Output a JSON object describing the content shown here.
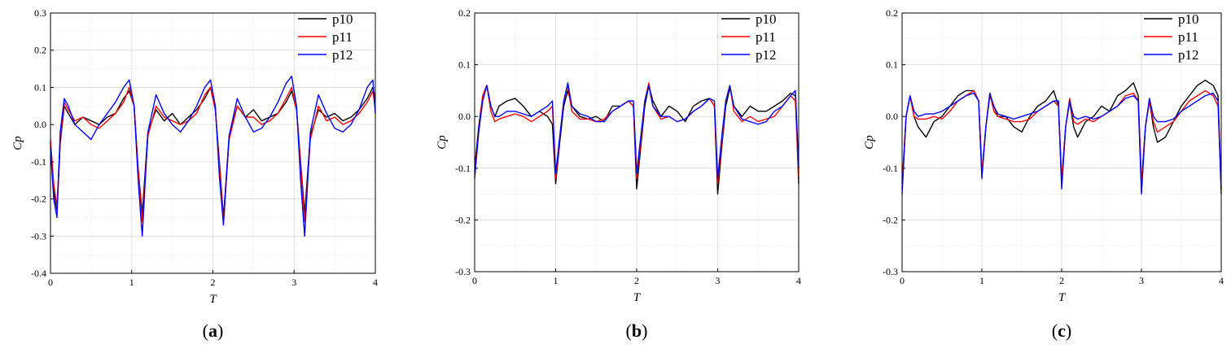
{
  "figure": {
    "panels": [
      {
        "label_open": "(",
        "label_letter": "a",
        "label_close": ")",
        "xticks": [
          "0",
          "1",
          "2",
          "3",
          "4"
        ],
        "yticks": [
          "-0.4",
          "-0.3",
          "-0.2",
          "-0.1",
          "0.0",
          "0.1",
          "0.2",
          "0.3"
        ]
      },
      {
        "label_open": "(",
        "label_letter": "b",
        "label_close": ")",
        "xticks": [
          "0",
          "1",
          "2",
          "3",
          "4"
        ],
        "yticks": [
          "-0.3",
          "-0.2",
          "-0.1",
          "0.0",
          "0.1",
          "0.2"
        ]
      },
      {
        "label_open": "(",
        "label_letter": "c",
        "label_close": ")",
        "xticks": [
          "0",
          "1",
          "2",
          "3",
          "4"
        ],
        "yticks": [
          "-0.3",
          "-0.2",
          "-0.1",
          "0.0",
          "0.1",
          "0.2"
        ]
      }
    ]
  },
  "colors": {
    "p10": "#000000",
    "p11": "#ff0000",
    "p12": "#0000ff",
    "grid": "#d8d8d8"
  },
  "chart_data": [
    {
      "type": "line",
      "xlabel": "T",
      "ylabel": "Cp",
      "xlim": [
        0,
        4
      ],
      "ylim": [
        -0.4,
        0.3
      ],
      "grid": true,
      "legend_position": "top-right",
      "x": [
        0,
        0.04,
        0.08,
        0.12,
        0.17,
        0.22,
        0.3,
        0.4,
        0.5,
        0.6,
        0.7,
        0.8,
        0.9,
        0.97,
        1.03,
        1.08,
        1.13,
        1.2,
        1.3,
        1.4,
        1.5,
        1.6,
        1.7,
        1.8,
        1.9,
        1.97,
        2.03,
        2.08,
        2.13,
        2.2,
        2.3,
        2.4,
        2.5,
        2.6,
        2.7,
        2.8,
        2.9,
        2.97,
        3.03,
        3.08,
        3.13,
        3.2,
        3.3,
        3.4,
        3.5,
        3.6,
        3.7,
        3.8,
        3.9,
        3.97,
        4.0
      ],
      "series": [
        {
          "name": "p10",
          "values": [
            -0.05,
            -0.18,
            -0.23,
            -0.05,
            0.05,
            0.03,
            0.0,
            0.02,
            0.01,
            0.0,
            0.02,
            0.03,
            0.07,
            0.09,
            0.05,
            -0.12,
            -0.24,
            -0.02,
            0.04,
            0.01,
            0.03,
            0.0,
            0.02,
            0.04,
            0.07,
            0.1,
            0.04,
            -0.1,
            -0.25,
            -0.03,
            0.05,
            0.02,
            0.04,
            0.01,
            0.02,
            0.03,
            0.06,
            0.09,
            0.04,
            -0.1,
            -0.24,
            -0.03,
            0.04,
            0.02,
            0.03,
            0.01,
            0.02,
            0.04,
            0.07,
            0.1,
            0.07
          ]
        },
        {
          "name": "p11",
          "values": [
            -0.04,
            -0.16,
            -0.22,
            -0.04,
            0.06,
            0.04,
            0.01,
            0.02,
            0.0,
            -0.01,
            0.01,
            0.03,
            0.06,
            0.1,
            0.05,
            -0.12,
            -0.26,
            -0.03,
            0.05,
            0.02,
            0.01,
            0.0,
            0.01,
            0.03,
            0.08,
            0.1,
            0.04,
            -0.11,
            -0.26,
            -0.04,
            0.05,
            0.02,
            0.02,
            0.0,
            0.01,
            0.03,
            0.07,
            0.1,
            0.04,
            -0.11,
            -0.26,
            -0.04,
            0.05,
            0.01,
            0.02,
            0.0,
            0.01,
            0.03,
            0.06,
            0.09,
            0.04
          ]
        },
        {
          "name": "p12",
          "values": [
            -0.06,
            -0.2,
            -0.25,
            -0.02,
            0.07,
            0.05,
            0.0,
            -0.02,
            -0.04,
            0.0,
            0.03,
            0.06,
            0.1,
            0.12,
            0.05,
            -0.15,
            -0.3,
            -0.02,
            0.08,
            0.03,
            0.0,
            -0.02,
            0.01,
            0.05,
            0.1,
            0.12,
            0.05,
            -0.14,
            -0.27,
            -0.03,
            0.07,
            0.02,
            -0.02,
            -0.01,
            0.02,
            0.06,
            0.11,
            0.13,
            0.05,
            -0.15,
            -0.3,
            -0.02,
            0.08,
            0.03,
            -0.01,
            -0.02,
            0.0,
            0.04,
            0.1,
            0.12,
            0.03
          ]
        }
      ]
    },
    {
      "type": "line",
      "xlabel": "T",
      "ylabel": "Cp",
      "xlim": [
        0,
        4
      ],
      "ylim": [
        -0.3,
        0.2
      ],
      "grid": true,
      "legend_position": "top-right",
      "x": [
        0,
        0.05,
        0.1,
        0.15,
        0.2,
        0.25,
        0.3,
        0.4,
        0.5,
        0.6,
        0.7,
        0.8,
        0.9,
        0.96,
        1.0,
        1.05,
        1.1,
        1.15,
        1.2,
        1.3,
        1.4,
        1.5,
        1.6,
        1.7,
        1.8,
        1.9,
        1.96,
        2.0,
        2.05,
        2.1,
        2.15,
        2.2,
        2.3,
        2.4,
        2.5,
        2.6,
        2.7,
        2.8,
        2.9,
        2.96,
        3.0,
        3.05,
        3.1,
        3.15,
        3.2,
        3.3,
        3.4,
        3.5,
        3.6,
        3.7,
        3.8,
        3.9,
        3.96,
        4.0
      ],
      "series": [
        {
          "name": "p10",
          "values": [
            -0.1,
            -0.02,
            0.04,
            0.06,
            0.02,
            0.0,
            0.02,
            0.03,
            0.035,
            0.02,
            0.0,
            0.01,
            0.0,
            -0.015,
            -0.13,
            -0.05,
            0.02,
            0.05,
            0.02,
            0.0,
            -0.005,
            0.0,
            -0.01,
            0.02,
            0.02,
            0.03,
            0.02,
            -0.14,
            -0.06,
            0.02,
            0.06,
            0.03,
            0.0,
            0.02,
            0.01,
            -0.01,
            0.02,
            0.03,
            0.035,
            0.02,
            -0.15,
            -0.06,
            0.02,
            0.055,
            0.02,
            0.0,
            0.02,
            0.01,
            0.01,
            0.02,
            0.03,
            0.045,
            0.04,
            -0.13
          ]
        },
        {
          "name": "p11",
          "values": [
            -0.11,
            -0.03,
            0.04,
            0.06,
            0.01,
            -0.01,
            -0.005,
            0.0,
            0.005,
            0.0,
            -0.01,
            0.0,
            0.01,
            0.02,
            -0.12,
            -0.04,
            0.03,
            0.06,
            0.01,
            -0.005,
            -0.005,
            -0.01,
            -0.005,
            0.01,
            0.02,
            0.03,
            0.02,
            -0.12,
            -0.05,
            0.03,
            0.065,
            0.02,
            -0.005,
            0.0,
            -0.01,
            -0.005,
            0.01,
            0.02,
            0.035,
            0.02,
            -0.13,
            -0.05,
            0.03,
            0.06,
            0.01,
            -0.01,
            0.0,
            -0.01,
            -0.005,
            0.0,
            0.02,
            0.04,
            0.03,
            -0.12
          ]
        },
        {
          "name": "p12",
          "values": [
            -0.12,
            -0.03,
            0.03,
            0.06,
            0.02,
            0.0,
            0.0,
            0.01,
            0.01,
            0.005,
            0.0,
            0.01,
            0.02,
            0.03,
            -0.11,
            -0.04,
            0.03,
            0.065,
            0.02,
            0.005,
            0.0,
            -0.01,
            -0.01,
            0.01,
            0.02,
            0.03,
            0.03,
            -0.11,
            -0.04,
            0.03,
            0.06,
            0.02,
            0.0,
            0.0,
            -0.01,
            -0.005,
            0.01,
            0.02,
            0.035,
            0.03,
            -0.12,
            -0.04,
            0.03,
            0.06,
            0.02,
            -0.005,
            -0.01,
            -0.015,
            -0.01,
            0.01,
            0.02,
            0.04,
            0.05,
            -0.1
          ]
        }
      ]
    },
    {
      "type": "line",
      "xlabel": "T",
      "ylabel": "Cp",
      "xlim": [
        0,
        4
      ],
      "ylim": [
        -0.3,
        0.2
      ],
      "grid": true,
      "legend_position": "top-right",
      "x": [
        0,
        0.05,
        0.1,
        0.15,
        0.2,
        0.3,
        0.4,
        0.5,
        0.6,
        0.7,
        0.8,
        0.9,
        0.96,
        1.0,
        1.05,
        1.1,
        1.15,
        1.2,
        1.3,
        1.4,
        1.5,
        1.6,
        1.7,
        1.8,
        1.9,
        1.96,
        2.0,
        2.05,
        2.1,
        2.15,
        2.2,
        2.3,
        2.4,
        2.5,
        2.6,
        2.7,
        2.8,
        2.9,
        2.96,
        3.0,
        3.05,
        3.1,
        3.15,
        3.2,
        3.3,
        3.4,
        3.5,
        3.6,
        3.7,
        3.8,
        3.9,
        3.96,
        4.0
      ],
      "series": [
        {
          "name": "p10",
          "values": [
            -0.14,
            0.0,
            0.04,
            0.0,
            -0.02,
            -0.04,
            -0.01,
            0.0,
            0.02,
            0.04,
            0.05,
            0.05,
            0.03,
            -0.11,
            -0.02,
            0.04,
            0.02,
            0.0,
            0.0,
            -0.02,
            -0.03,
            0.0,
            0.02,
            0.03,
            0.05,
            0.02,
            -0.13,
            -0.02,
            0.03,
            -0.02,
            -0.04,
            -0.01,
            0.0,
            0.02,
            0.01,
            0.04,
            0.05,
            0.065,
            0.04,
            -0.13,
            -0.02,
            0.03,
            -0.02,
            -0.05,
            -0.04,
            -0.01,
            0.02,
            0.04,
            0.06,
            0.07,
            0.06,
            0.04,
            -0.14
          ]
        },
        {
          "name": "p11",
          "values": [
            -0.13,
            0.0,
            0.04,
            0.0,
            -0.005,
            -0.005,
            0.0,
            -0.005,
            0.01,
            0.03,
            0.04,
            0.05,
            0.03,
            -0.11,
            -0.02,
            0.045,
            0.01,
            0.0,
            -0.005,
            -0.01,
            -0.01,
            -0.005,
            0.01,
            0.02,
            0.03,
            0.02,
            -0.12,
            -0.02,
            0.035,
            -0.01,
            -0.015,
            -0.005,
            -0.01,
            0.0,
            0.01,
            0.02,
            0.04,
            0.045,
            0.03,
            -0.13,
            -0.02,
            0.03,
            -0.01,
            -0.03,
            -0.02,
            -0.01,
            0.01,
            0.03,
            0.04,
            0.05,
            0.04,
            0.02,
            -0.14
          ]
        },
        {
          "name": "p12",
          "values": [
            -0.15,
            0.0,
            0.04,
            0.01,
            0.0,
            0.005,
            0.005,
            0.01,
            0.02,
            0.03,
            0.04,
            0.045,
            0.03,
            -0.12,
            -0.02,
            0.045,
            0.02,
            0.005,
            0.0,
            -0.005,
            0.0,
            0.005,
            0.01,
            0.02,
            0.03,
            0.03,
            -0.14,
            -0.02,
            0.03,
            0.0,
            -0.005,
            0.0,
            -0.005,
            0.0,
            0.01,
            0.02,
            0.035,
            0.04,
            0.03,
            -0.15,
            -0.02,
            0.035,
            0.0,
            -0.01,
            -0.01,
            -0.005,
            0.01,
            0.02,
            0.03,
            0.04,
            0.045,
            0.03,
            -0.15
          ]
        }
      ]
    }
  ]
}
